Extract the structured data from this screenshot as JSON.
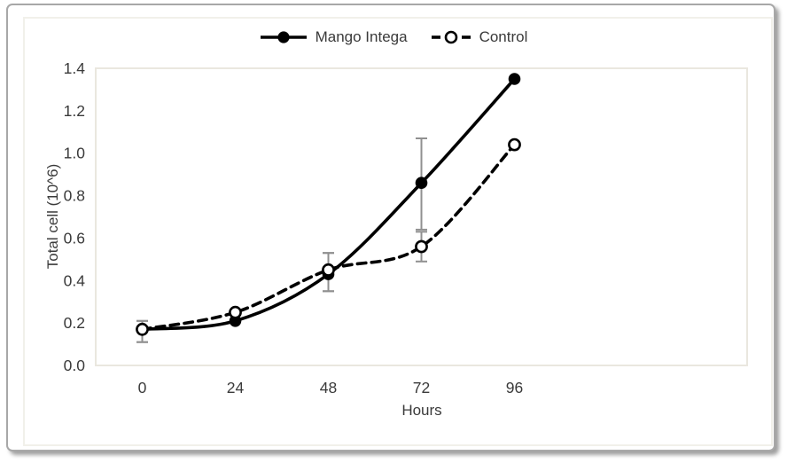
{
  "chart_data": {
    "type": "line",
    "title": "",
    "xlabel": "Hours",
    "ylabel": "Total cell (10^6)",
    "x_categories": [
      "0",
      "24",
      "48",
      "72",
      "96"
    ],
    "x_total_slots": 7,
    "y_ticks": [
      "0.0",
      "0.2",
      "0.4",
      "0.6",
      "0.8",
      "1.0",
      "1.2",
      "1.4"
    ],
    "ylim": [
      0,
      1.4
    ],
    "grid": false,
    "legend_position": "top-center",
    "line_smoothing": true,
    "series": [
      {
        "name": "Mango Intega",
        "line_style": "solid",
        "marker": "filled-circle",
        "color": "#000000",
        "values": [
          0.17,
          0.21,
          0.43,
          0.86,
          1.35
        ],
        "error_low": [
          0.11,
          null,
          0.35,
          0.64,
          null
        ],
        "error_high": [
          0.21,
          null,
          0.53,
          1.07,
          null
        ]
      },
      {
        "name": "Control",
        "line_style": "dashed",
        "marker": "open-circle",
        "color": "#000000",
        "values": [
          0.17,
          0.25,
          0.45,
          0.56,
          1.04
        ],
        "error_low": [
          0.11,
          null,
          0.35,
          0.49,
          null
        ],
        "error_high": [
          0.21,
          null,
          0.53,
          0.63,
          null
        ]
      }
    ]
  },
  "colors": {
    "line": "#000000",
    "error_bar": "#909090",
    "text": "#3a3a3a",
    "plot_border": "#eae7df",
    "frame_border": "#a8a8a8",
    "inner_border": "#f1f0ea",
    "background": "#ffffff"
  }
}
